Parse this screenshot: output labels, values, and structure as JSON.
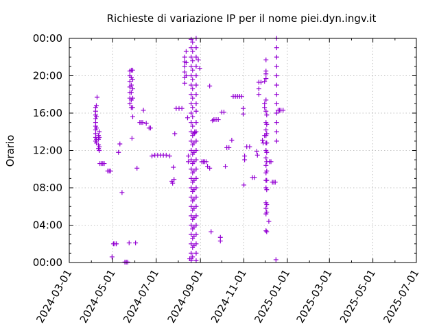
{
  "chart_data": {
    "type": "scatter",
    "title": "Richieste di variazione IP per il nome piei.dyn.ingv.it",
    "ylabel": "Orario",
    "xlabel": "",
    "color": "#9400d3",
    "marker": "plus",
    "grid": true,
    "xlim": [
      "2024-03-01",
      "2025-07-01"
    ],
    "ylim": [
      0,
      24
    ],
    "x_ticks": [
      "2024-03-01",
      "2024-05-01",
      "2024-07-01",
      "2024-09-01",
      "2024-11-01",
      "2025-01-01",
      "2025-03-01",
      "2025-05-01",
      "2025-07-01"
    ],
    "y_ticks": [
      "00:00",
      "04:00",
      "08:00",
      "12:00",
      "16:00",
      "20:00",
      "00:00"
    ],
    "y_tick_values": [
      0,
      4,
      8,
      12,
      16,
      20,
      24
    ],
    "points": [
      [
        "2024-04-07",
        16.6
      ],
      [
        "2024-04-07",
        16.2
      ],
      [
        "2024-04-07",
        15.8
      ],
      [
        "2024-04-07",
        15.4
      ],
      [
        "2024-04-07",
        15.0
      ],
      [
        "2024-04-07",
        14.6
      ],
      [
        "2024-04-07",
        14.2
      ],
      [
        "2024-04-07",
        13.8
      ],
      [
        "2024-04-07",
        13.4
      ],
      [
        "2024-04-07",
        13.0
      ],
      [
        "2024-04-08",
        16.8
      ],
      [
        "2024-04-08",
        15.6
      ],
      [
        "2024-04-08",
        14.4
      ],
      [
        "2024-04-08",
        13.2
      ],
      [
        "2024-04-08",
        12.8
      ],
      [
        "2024-04-09",
        17.7
      ],
      [
        "2024-04-11",
        13.6
      ],
      [
        "2024-04-11",
        13.2
      ],
      [
        "2024-04-11",
        12.6
      ],
      [
        "2024-04-11",
        12.2
      ],
      [
        "2024-04-12",
        14.0
      ],
      [
        "2024-04-12",
        13.4
      ],
      [
        "2024-04-12",
        12.4
      ],
      [
        "2024-04-12",
        12.0
      ],
      [
        "2024-04-13",
        10.6
      ],
      [
        "2024-04-15",
        10.6
      ],
      [
        "2024-04-17",
        10.6
      ],
      [
        "2024-04-19",
        10.6
      ],
      [
        "2024-04-24",
        9.8
      ],
      [
        "2024-04-26",
        9.8
      ],
      [
        "2024-04-28",
        9.8
      ],
      [
        "2024-04-30",
        0.6
      ],
      [
        "2024-05-02",
        2.0
      ],
      [
        "2024-05-04",
        2.0
      ],
      [
        "2024-05-06",
        2.0
      ],
      [
        "2024-05-09",
        11.8
      ],
      [
        "2024-05-11",
        12.7
      ],
      [
        "2024-05-14",
        7.5
      ],
      [
        "2024-05-18",
        0.05
      ],
      [
        "2024-05-20",
        0.05
      ],
      [
        "2024-05-22",
        0.05
      ],
      [
        "2024-05-24",
        2.1
      ],
      [
        "2024-05-25",
        20.5
      ],
      [
        "2024-05-25",
        20.0
      ],
      [
        "2024-05-25",
        19.4
      ],
      [
        "2024-05-25",
        18.8
      ],
      [
        "2024-05-25",
        18.2
      ],
      [
        "2024-05-25",
        17.6
      ],
      [
        "2024-05-25",
        17.0
      ],
      [
        "2024-05-27",
        20.6
      ],
      [
        "2024-05-27",
        19.8
      ],
      [
        "2024-05-27",
        19.0
      ],
      [
        "2024-05-27",
        18.2
      ],
      [
        "2024-05-27",
        17.4
      ],
      [
        "2024-05-27",
        16.6
      ],
      [
        "2024-05-29",
        20.6
      ],
      [
        "2024-05-29",
        19.6
      ],
      [
        "2024-05-29",
        18.6
      ],
      [
        "2024-05-29",
        17.6
      ],
      [
        "2024-05-29",
        16.6
      ],
      [
        "2024-05-29",
        15.6
      ],
      [
        "2024-05-28",
        13.3
      ],
      [
        "2024-06-02",
        2.1
      ],
      [
        "2024-06-04",
        10.1
      ],
      [
        "2024-06-08",
        15.0
      ],
      [
        "2024-06-10",
        15.0
      ],
      [
        "2024-06-12",
        15.0
      ],
      [
        "2024-06-13",
        16.3
      ],
      [
        "2024-06-17",
        14.9
      ],
      [
        "2024-06-21",
        14.4
      ],
      [
        "2024-06-23",
        14.4
      ],
      [
        "2024-06-25",
        11.4
      ],
      [
        "2024-06-29",
        11.5
      ],
      [
        "2024-07-03",
        11.5
      ],
      [
        "2024-07-07",
        11.5
      ],
      [
        "2024-07-11",
        11.5
      ],
      [
        "2024-07-15",
        11.5
      ],
      [
        "2024-07-20",
        11.4
      ],
      [
        "2024-07-23",
        8.7
      ],
      [
        "2024-07-24",
        8.5
      ],
      [
        "2024-07-25",
        10.2
      ],
      [
        "2024-07-26",
        8.9
      ],
      [
        "2024-07-27",
        13.8
      ],
      [
        "2024-07-29",
        16.5
      ],
      [
        "2024-08-02",
        16.5
      ],
      [
        "2024-08-06",
        16.5
      ],
      [
        "2024-08-10",
        21.5
      ],
      [
        "2024-08-10",
        22.0
      ],
      [
        "2024-08-10",
        21.0
      ],
      [
        "2024-08-10",
        20.4
      ],
      [
        "2024-08-10",
        19.8
      ],
      [
        "2024-08-10",
        19.2
      ],
      [
        "2024-08-12",
        22.6
      ],
      [
        "2024-08-12",
        21.4
      ],
      [
        "2024-08-12",
        20.0
      ],
      [
        "2024-08-14",
        15.5
      ],
      [
        "2024-08-15",
        11.4
      ],
      [
        "2024-08-15",
        10.8
      ],
      [
        "2024-08-17",
        0.4
      ],
      [
        "2024-08-19",
        0.4
      ],
      [
        "2024-08-19",
        23.9
      ],
      [
        "2024-08-19",
        23.0
      ],
      [
        "2024-08-19",
        22.0
      ],
      [
        "2024-08-19",
        21.0
      ],
      [
        "2024-08-19",
        20.0
      ],
      [
        "2024-08-19",
        19.0
      ],
      [
        "2024-08-19",
        18.0
      ],
      [
        "2024-08-19",
        17.0
      ],
      [
        "2024-08-19",
        16.0
      ],
      [
        "2024-08-19",
        15.0
      ],
      [
        "2024-08-19",
        14.0
      ],
      [
        "2024-08-19",
        13.0
      ],
      [
        "2024-08-19",
        12.0
      ],
      [
        "2024-08-19",
        11.0
      ],
      [
        "2024-08-19",
        10.0
      ],
      [
        "2024-08-19",
        9.0
      ],
      [
        "2024-08-19",
        8.0
      ],
      [
        "2024-08-19",
        7.0
      ],
      [
        "2024-08-19",
        6.0
      ],
      [
        "2024-08-19",
        5.0
      ],
      [
        "2024-08-19",
        4.0
      ],
      [
        "2024-08-19",
        3.0
      ],
      [
        "2024-08-19",
        2.0
      ],
      [
        "2024-08-19",
        1.0
      ],
      [
        "2024-08-19",
        0.2
      ],
      [
        "2024-08-21",
        23.6
      ],
      [
        "2024-08-21",
        22.6
      ],
      [
        "2024-08-21",
        21.6
      ],
      [
        "2024-08-21",
        20.6
      ],
      [
        "2024-08-21",
        19.6
      ],
      [
        "2024-08-21",
        18.6
      ],
      [
        "2024-08-21",
        17.6
      ],
      [
        "2024-08-21",
        16.6
      ],
      [
        "2024-08-21",
        15.6
      ],
      [
        "2024-08-21",
        14.6
      ],
      [
        "2024-08-21",
        13.6
      ],
      [
        "2024-08-21",
        12.6
      ],
      [
        "2024-08-21",
        11.6
      ],
      [
        "2024-08-21",
        10.6
      ],
      [
        "2024-08-21",
        9.6
      ],
      [
        "2024-08-21",
        8.6
      ],
      [
        "2024-08-21",
        7.6
      ],
      [
        "2024-08-21",
        6.6
      ],
      [
        "2024-08-21",
        5.6
      ],
      [
        "2024-08-21",
        4.6
      ],
      [
        "2024-08-21",
        3.6
      ],
      [
        "2024-08-21",
        2.6
      ],
      [
        "2024-08-21",
        1.6
      ],
      [
        "2024-08-21",
        0.6
      ],
      [
        "2024-08-23",
        13.8
      ],
      [
        "2024-08-23",
        12.8
      ],
      [
        "2024-08-23",
        11.8
      ],
      [
        "2024-08-23",
        10.8
      ],
      [
        "2024-08-23",
        9.8
      ],
      [
        "2024-08-23",
        8.8
      ],
      [
        "2024-08-23",
        7.8
      ],
      [
        "2024-08-23",
        6.8
      ],
      [
        "2024-08-23",
        5.8
      ],
      [
        "2024-08-23",
        4.8
      ],
      [
        "2024-08-23",
        3.8
      ],
      [
        "2024-08-23",
        2.8
      ],
      [
        "2024-08-23",
        1.8
      ],
      [
        "2024-08-24",
        13.9
      ],
      [
        "2024-08-24",
        14.0
      ],
      [
        "2024-08-26",
        24.0
      ],
      [
        "2024-08-26",
        23.0
      ],
      [
        "2024-08-26",
        22.0
      ],
      [
        "2024-08-26",
        21.0
      ],
      [
        "2024-08-26",
        20.0
      ],
      [
        "2024-08-26",
        19.0
      ],
      [
        "2024-08-26",
        18.0
      ],
      [
        "2024-08-26",
        17.0
      ],
      [
        "2024-08-26",
        16.2
      ],
      [
        "2024-08-26",
        15.0
      ],
      [
        "2024-08-26",
        14.0
      ],
      [
        "2024-08-26",
        13.0
      ],
      [
        "2024-08-26",
        12.0
      ],
      [
        "2024-08-26",
        11.0
      ],
      [
        "2024-08-26",
        10.0
      ],
      [
        "2024-08-26",
        9.0
      ],
      [
        "2024-08-26",
        8.0
      ],
      [
        "2024-08-26",
        7.0
      ],
      [
        "2024-08-26",
        6.0
      ],
      [
        "2024-08-26",
        5.0
      ],
      [
        "2024-08-26",
        4.0
      ],
      [
        "2024-08-26",
        3.0
      ],
      [
        "2024-08-26",
        2.0
      ],
      [
        "2024-08-26",
        1.0
      ],
      [
        "2024-08-26",
        0.2
      ],
      [
        "2024-08-29",
        21.7
      ],
      [
        "2024-08-31",
        20.8
      ],
      [
        "2024-09-03",
        10.8
      ],
      [
        "2024-09-05",
        10.8
      ],
      [
        "2024-09-07",
        10.8
      ],
      [
        "2024-09-09",
        10.8
      ],
      [
        "2024-09-11",
        10.3
      ],
      [
        "2024-09-14",
        10.1
      ],
      [
        "2024-09-14",
        18.9
      ],
      [
        "2024-09-16",
        3.3
      ],
      [
        "2024-09-18",
        15.2
      ],
      [
        "2024-09-20",
        15.3
      ],
      [
        "2024-09-23",
        15.3
      ],
      [
        "2024-09-26",
        15.3
      ],
      [
        "2024-09-29",
        2.7
      ],
      [
        "2024-09-29",
        2.3
      ],
      [
        "2024-10-01",
        16.1
      ],
      [
        "2024-10-04",
        16.1
      ],
      [
        "2024-10-06",
        10.3
      ],
      [
        "2024-10-08",
        12.3
      ],
      [
        "2024-10-11",
        12.3
      ],
      [
        "2024-10-15",
        13.1
      ],
      [
        "2024-10-17",
        17.8
      ],
      [
        "2024-10-20",
        17.8
      ],
      [
        "2024-10-23",
        17.8
      ],
      [
        "2024-10-26",
        17.8
      ],
      [
        "2024-10-29",
        17.8
      ],
      [
        "2024-10-31",
        16.5
      ],
      [
        "2024-10-31",
        15.9
      ],
      [
        "2024-11-01",
        8.3
      ],
      [
        "2024-11-02",
        11.4
      ],
      [
        "2024-11-02",
        11.0
      ],
      [
        "2024-11-05",
        12.4
      ],
      [
        "2024-11-09",
        12.4
      ],
      [
        "2024-11-13",
        9.1
      ],
      [
        "2024-11-16",
        9.1
      ],
      [
        "2024-11-19",
        11.9
      ],
      [
        "2024-11-20",
        11.5
      ],
      [
        "2024-11-22",
        19.3
      ],
      [
        "2024-11-22",
        18.6
      ],
      [
        "2024-11-22",
        18.0
      ],
      [
        "2024-11-25",
        19.3
      ],
      [
        "2024-11-27",
        13.1
      ],
      [
        "2024-11-28",
        12.8
      ],
      [
        "2024-11-30",
        19.4
      ],
      [
        "2024-11-30",
        17.0
      ],
      [
        "2024-11-30",
        16.6
      ],
      [
        "2024-11-30",
        13.6
      ],
      [
        "2024-12-02",
        19.7
      ],
      [
        "2024-12-02",
        20.5
      ],
      [
        "2024-12-02",
        20.2
      ],
      [
        "2024-12-02",
        21.7
      ],
      [
        "2024-12-02",
        17.4
      ],
      [
        "2024-12-02",
        16.2
      ],
      [
        "2024-12-02",
        15.0
      ],
      [
        "2024-12-02",
        14.2
      ],
      [
        "2024-12-02",
        13.6
      ],
      [
        "2024-12-02",
        12.8
      ],
      [
        "2024-12-02",
        12.0
      ],
      [
        "2024-12-02",
        11.2
      ],
      [
        "2024-12-02",
        10.4
      ],
      [
        "2024-12-02",
        9.6
      ],
      [
        "2024-12-02",
        8.8
      ],
      [
        "2024-12-02",
        8.0
      ],
      [
        "2024-12-02",
        6.4
      ],
      [
        "2024-12-02",
        5.8
      ],
      [
        "2024-12-02",
        5.2
      ],
      [
        "2024-12-02",
        3.4
      ],
      [
        "2024-12-03",
        15.8
      ],
      [
        "2024-12-03",
        14.8
      ],
      [
        "2024-12-03",
        13.8
      ],
      [
        "2024-12-03",
        12.8
      ],
      [
        "2024-12-03",
        11.8
      ],
      [
        "2024-12-03",
        10.8
      ],
      [
        "2024-12-03",
        9.8
      ],
      [
        "2024-12-03",
        8.8
      ],
      [
        "2024-12-03",
        7.8
      ],
      [
        "2024-12-03",
        6.2
      ],
      [
        "2024-12-03",
        5.4
      ],
      [
        "2024-12-03",
        3.3
      ],
      [
        "2024-12-06",
        4.4
      ],
      [
        "2024-12-07",
        10.8
      ],
      [
        "2024-12-09",
        10.8
      ],
      [
        "2024-12-11",
        8.6
      ],
      [
        "2024-12-13",
        8.6
      ],
      [
        "2024-12-15",
        8.6
      ],
      [
        "2024-12-16",
        0.3
      ],
      [
        "2024-12-17",
        24.0
      ],
      [
        "2024-12-17",
        23.0
      ],
      [
        "2024-12-17",
        22.0
      ],
      [
        "2024-12-17",
        21.0
      ],
      [
        "2024-12-17",
        20.0
      ],
      [
        "2024-12-17",
        19.0
      ],
      [
        "2024-12-17",
        18.0
      ],
      [
        "2024-12-17",
        17.0
      ],
      [
        "2024-12-17",
        16.0
      ],
      [
        "2024-12-17",
        15.0
      ],
      [
        "2024-12-17",
        14.0
      ],
      [
        "2024-12-17",
        13.0
      ],
      [
        "2024-12-19",
        16.3
      ],
      [
        "2024-12-21",
        16.3
      ],
      [
        "2024-12-23",
        16.3
      ],
      [
        "2024-12-26",
        16.3
      ]
    ]
  }
}
